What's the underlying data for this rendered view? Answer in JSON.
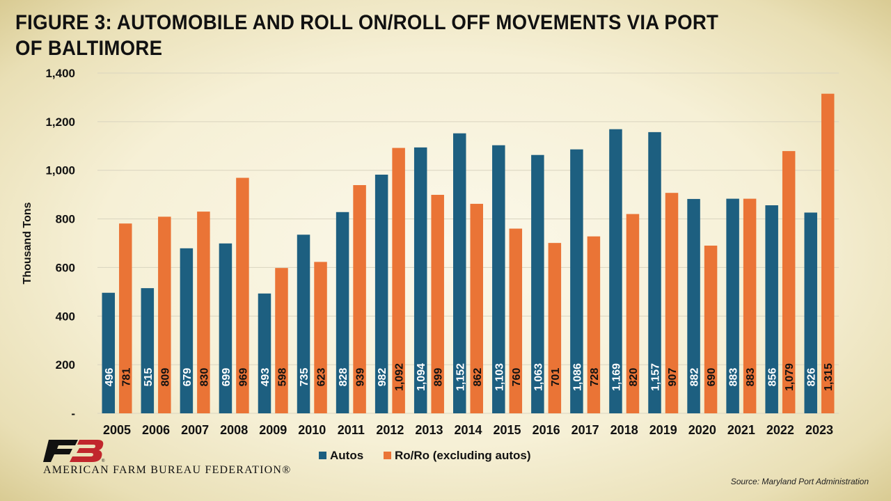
{
  "title": "FIGURE 3: AUTOMOBILE AND ROLL ON/ROLL OFF MOVEMENTS VIA PORT OF BALTIMORE",
  "source": "Source: Maryland Port Administration",
  "organization": "AMERICAN FARM BUREAU FEDERATION®",
  "logo_icon": "farm-bureau-fb-logo",
  "colors": {
    "autos": "#1d5f80",
    "roro": "#ea7436",
    "grid": "#d9d4bf",
    "text": "#111111"
  },
  "chart_data": {
    "type": "bar",
    "title": "FIGURE 3: AUTOMOBILE AND ROLL ON/ROLL OFF MOVEMENTS VIA PORT OF BALTIMORE",
    "xlabel": "",
    "ylabel": "Thousand Tons",
    "ylim": [
      0,
      1400
    ],
    "yticks": [
      0,
      200,
      400,
      600,
      800,
      1000,
      1200,
      1400
    ],
    "ytick_labels": [
      "-",
      "200",
      "400",
      "600",
      "800",
      "1,000",
      "1,200",
      "1,400"
    ],
    "grid": true,
    "legend_position": "bottom",
    "categories": [
      "2005",
      "2006",
      "2007",
      "2008",
      "2009",
      "2010",
      "2011",
      "2012",
      "2013",
      "2014",
      "2015",
      "2016",
      "2017",
      "2018",
      "2019",
      "2020",
      "2021",
      "2022",
      "2023"
    ],
    "series": [
      {
        "name": "Autos",
        "values": [
          496,
          515,
          679,
          699,
          493,
          735,
          828,
          982,
          1094,
          1152,
          1103,
          1063,
          1086,
          1169,
          1157,
          882,
          883,
          856,
          826
        ],
        "labels": [
          "496",
          "515",
          "679",
          "699",
          "493",
          "735",
          "828",
          "982",
          "1,094",
          "1,152",
          "1,103",
          "1,063",
          "1,086",
          "1,169",
          "1,157",
          "882",
          "883",
          "856",
          "826"
        ]
      },
      {
        "name": "Ro/Ro (excluding autos)",
        "values": [
          781,
          809,
          830,
          969,
          598,
          623,
          939,
          1092,
          899,
          862,
          760,
          701,
          728,
          820,
          907,
          690,
          883,
          1079,
          1315
        ],
        "labels": [
          "781",
          "809",
          "830",
          "969",
          "598",
          "623",
          "939",
          "1,092",
          "899",
          "862",
          "760",
          "701",
          "728",
          "820",
          "907",
          "690",
          "883",
          "1,079",
          "1,315"
        ]
      }
    ]
  }
}
